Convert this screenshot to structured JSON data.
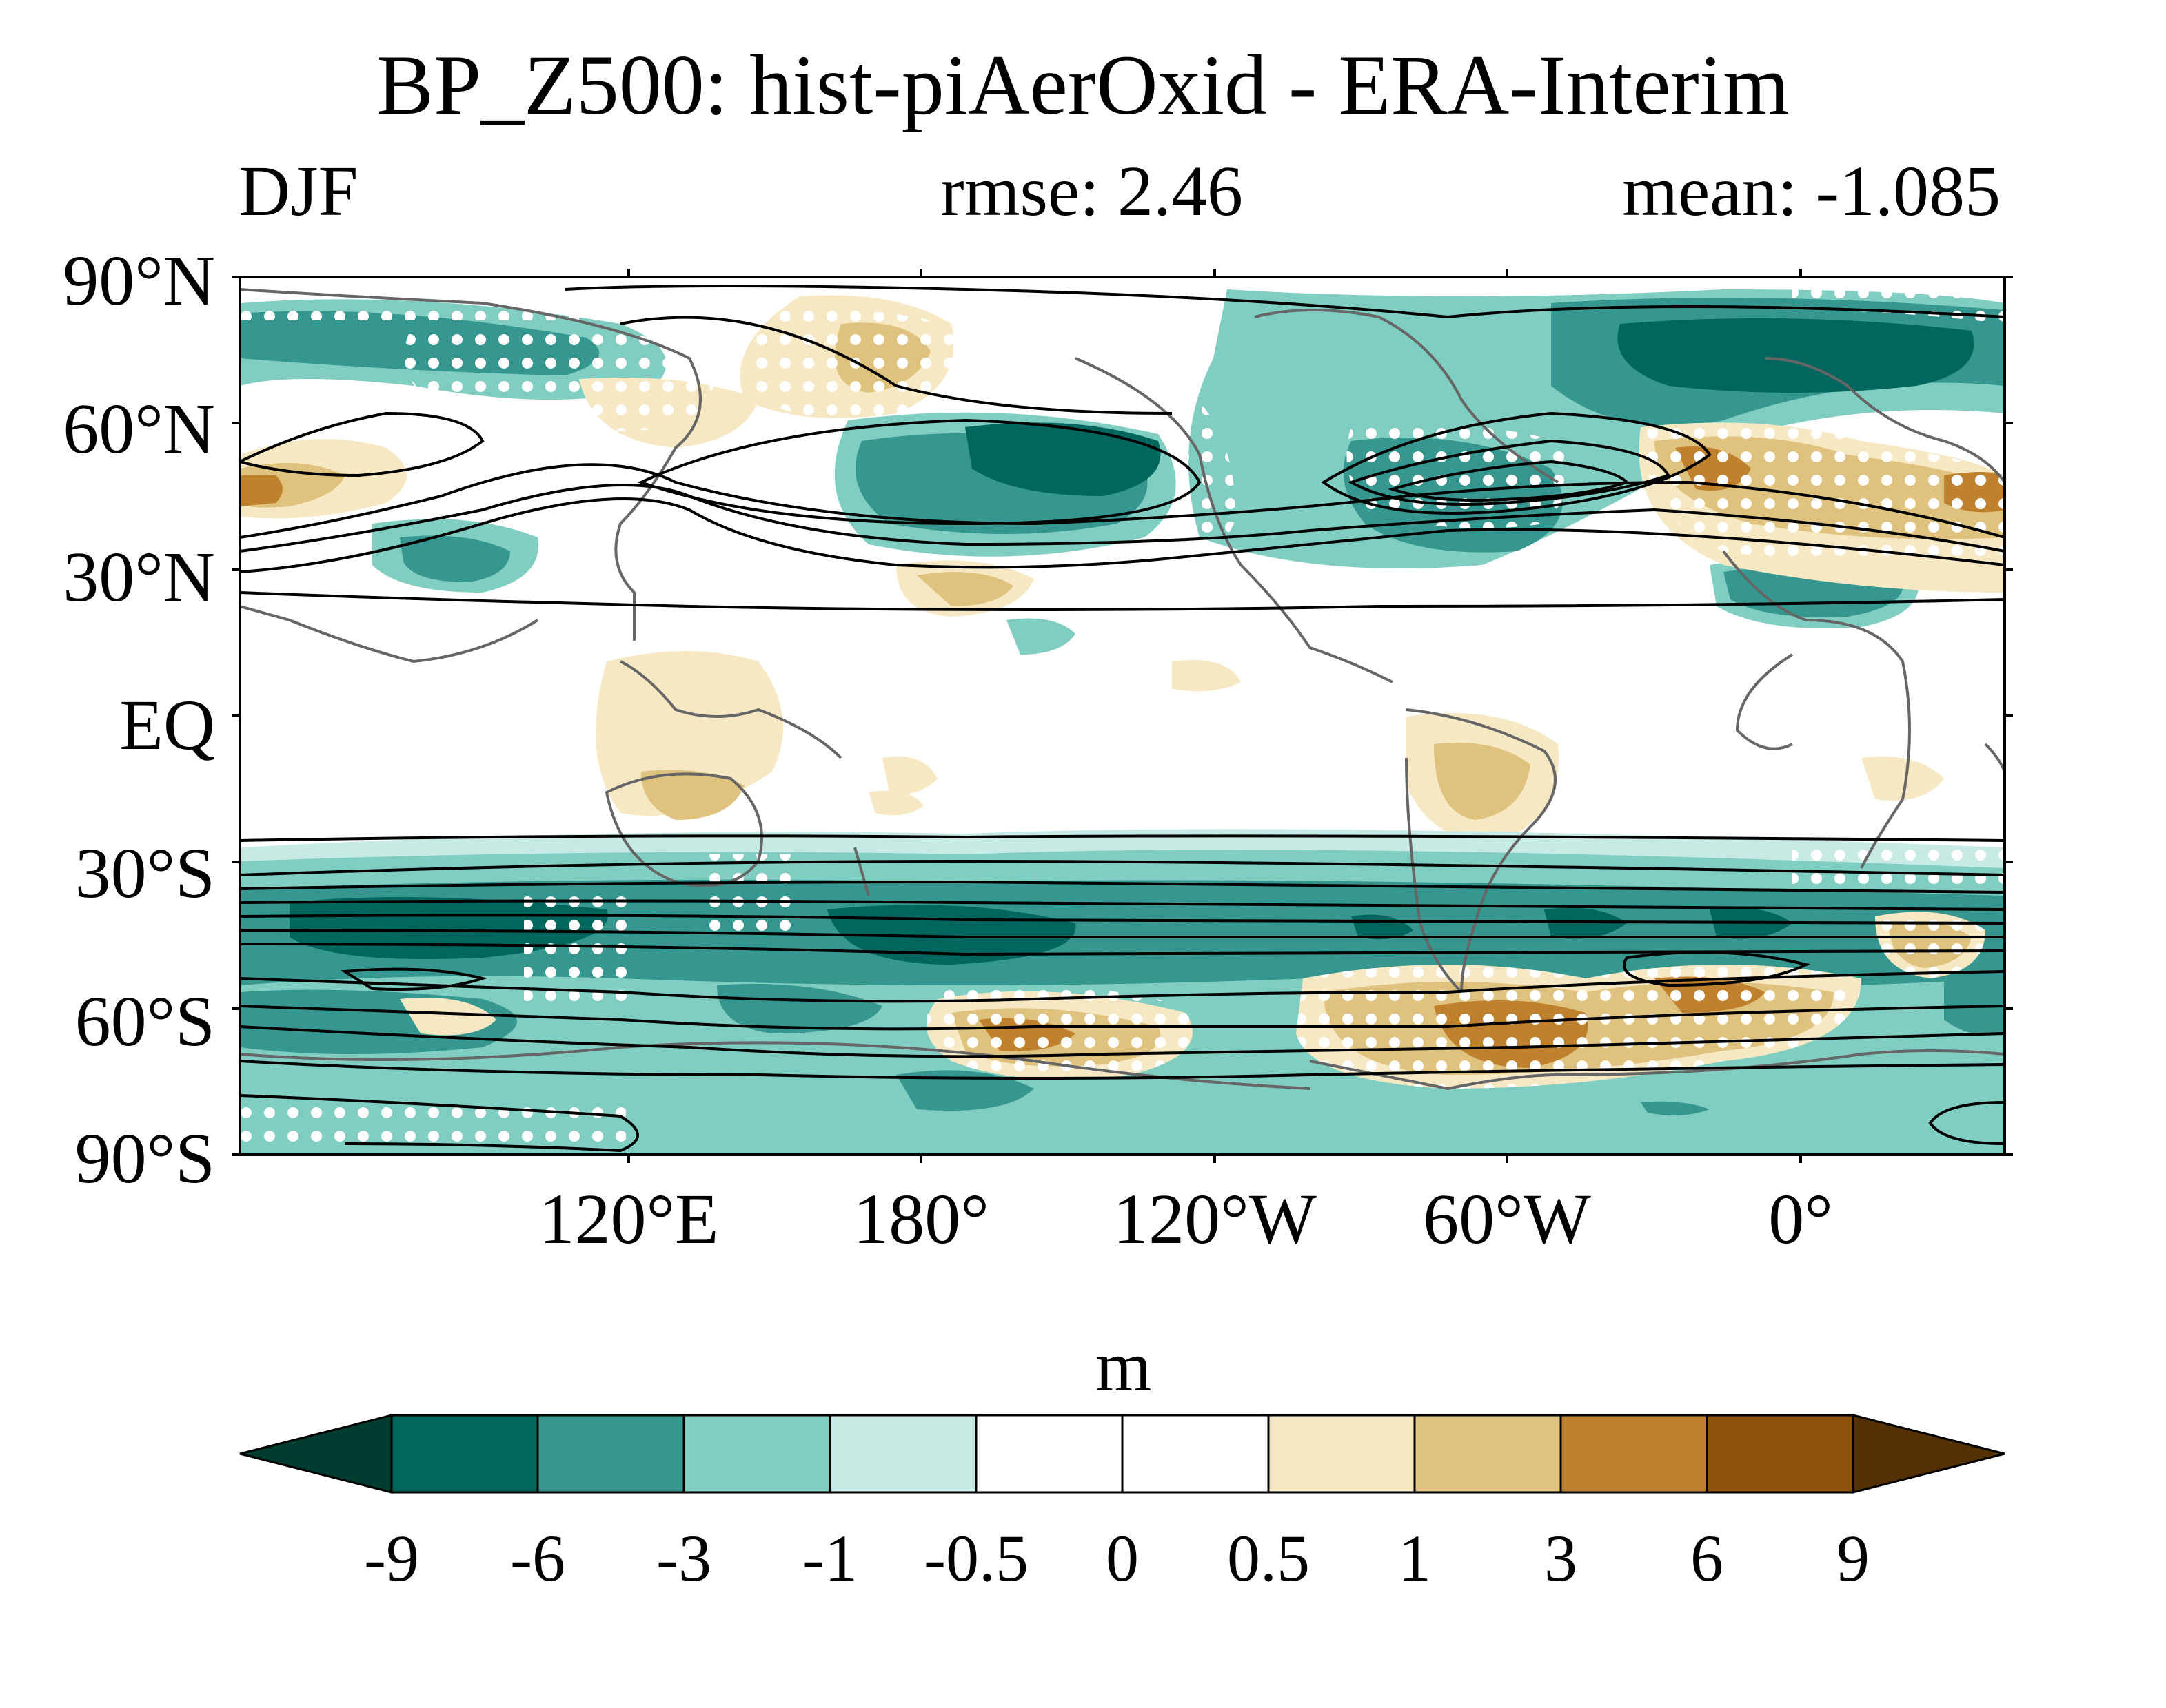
{
  "title": "BP_Z500: hist-piAerOxid - ERA-Interim",
  "season": "DJF",
  "rmse_label": "rmse: 2.46",
  "mean_label": "mean: -1.085",
  "lat_ticks": [
    "90°N",
    "60°N",
    "30°N",
    "EQ",
    "30°S",
    "60°S",
    "90°S"
  ],
  "lon_ticks": [
    "120°E",
    "180°",
    "120°W",
    "60°W",
    "0°"
  ],
  "colorbar": {
    "units": "m",
    "labels": [
      "-9",
      "-6",
      "-3",
      "-1",
      "-0.5",
      "0",
      "0.5",
      "1",
      "3",
      "6",
      "9"
    ],
    "colors": [
      "#003c30",
      "#01665e",
      "#35978f",
      "#80cdc1",
      "#c7eae5",
      "#ffffff",
      "#ffffff",
      "#f6e8c3",
      "#dfc27d",
      "#bf812d",
      "#8c510a",
      "#543005"
    ]
  },
  "fill_colors": {
    "neg_strong": "#01665e",
    "neg_mid": "#35978f",
    "neg_weak": "#80cdc1",
    "neg_faint": "#c7eae5",
    "pos_faint": "#f6e8c3",
    "pos_weak": "#dfc27d",
    "pos_mid": "#bf812d",
    "pos_strong": "#8c510a",
    "coast": "#666666",
    "stipple": "#ffffff",
    "contour": "#000000"
  }
}
